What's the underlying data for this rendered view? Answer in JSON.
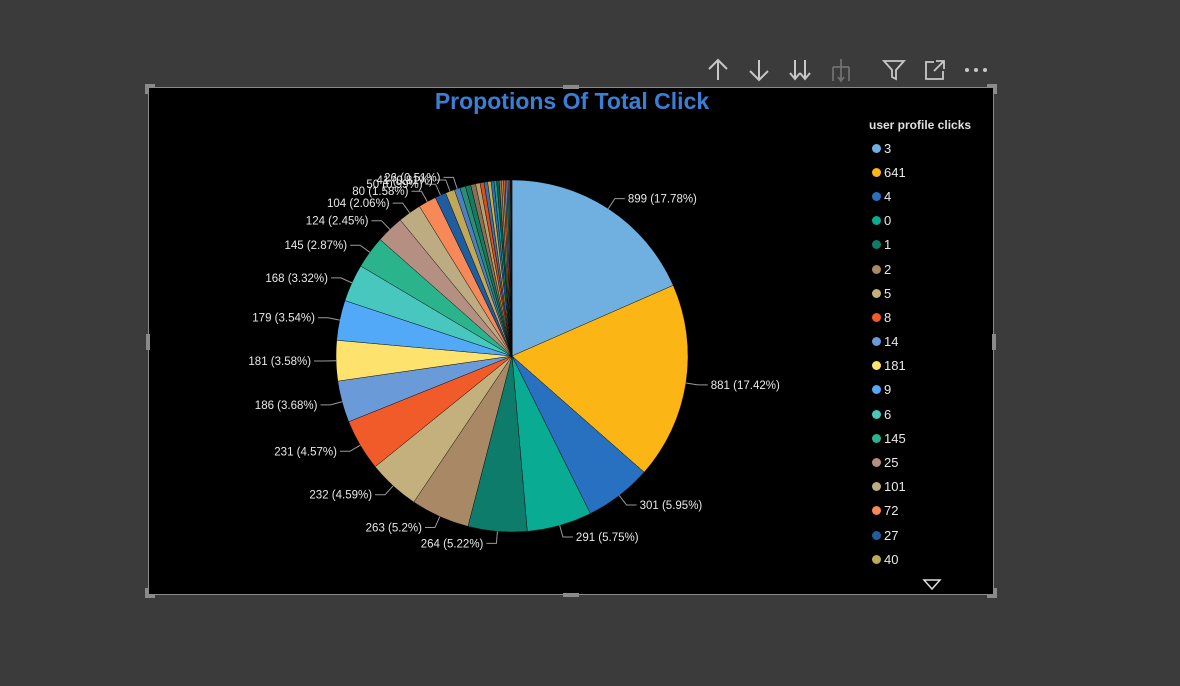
{
  "toolbar": {
    "icons": [
      "arrow-up-icon",
      "arrow-down-icon",
      "double-arrow-down-icon",
      "expand-hierarchy-icon",
      "filter-icon",
      "focus-mode-icon",
      "more-options-icon"
    ]
  },
  "chart_data": {
    "type": "pie",
    "title": "Propotions Of Total Click",
    "legend_title": "user profile clicks",
    "legend_placement": "right",
    "legend_items": [
      {
        "label": "3",
        "color": "#6fb0e0"
      },
      {
        "label": "641",
        "color": "#fbb515"
      },
      {
        "label": "4",
        "color": "#2871c0"
      },
      {
        "label": "0",
        "color": "#0aab93"
      },
      {
        "label": "1",
        "color": "#0e7c6b"
      },
      {
        "label": "2",
        "color": "#a98965"
      },
      {
        "label": "5",
        "color": "#c4b07c"
      },
      {
        "label": "8",
        "color": "#f15a29"
      },
      {
        "label": "14",
        "color": "#6a9ad8"
      },
      {
        "label": "181",
        "color": "#fde26d"
      },
      {
        "label": "9",
        "color": "#52a9f7"
      },
      {
        "label": "6",
        "color": "#47c7bd"
      },
      {
        "label": "145",
        "color": "#2bb38c"
      },
      {
        "label": "25",
        "color": "#b58f82"
      },
      {
        "label": "101",
        "color": "#bdac82"
      },
      {
        "label": "72",
        "color": "#f78857"
      },
      {
        "label": "27",
        "color": "#1f5d9e"
      },
      {
        "label": "40",
        "color": "#c1a858"
      }
    ],
    "slices": [
      {
        "value": 899,
        "label": "899 (17.78%)",
        "color": "#6fb0e0"
      },
      {
        "value": 881,
        "label": "881 (17.42%)",
        "color": "#fbb515"
      },
      {
        "value": 301,
        "label": "301 (5.95%)",
        "color": "#2871c0"
      },
      {
        "value": 291,
        "label": "291 (5.75%)",
        "color": "#0aab93"
      },
      {
        "value": 264,
        "label": "264 (5.22%)",
        "color": "#0e7c6b"
      },
      {
        "value": 263,
        "label": "263 (5.2%)",
        "color": "#a98965"
      },
      {
        "value": 232,
        "label": "232 (4.59%)",
        "color": "#c4b07c"
      },
      {
        "value": 231,
        "label": "231 (4.57%)",
        "color": "#f15a29"
      },
      {
        "value": 186,
        "label": "186 (3.68%)",
        "color": "#6a9ad8"
      },
      {
        "value": 181,
        "label": "181 (3.58%)",
        "color": "#fde26d"
      },
      {
        "value": 179,
        "label": "179 (3.54%)",
        "color": "#52a9f7"
      },
      {
        "value": 168,
        "label": "168 (3.32%)",
        "color": "#47c7bd"
      },
      {
        "value": 145,
        "label": "145 (2.87%)",
        "color": "#2bb38c"
      },
      {
        "value": 124,
        "label": "124 (2.45%)",
        "color": "#b58f82"
      },
      {
        "value": 104,
        "label": "104 (2.06%)",
        "color": "#bdac82"
      },
      {
        "value": 80,
        "label": "80 (1.58%)",
        "color": "#f78857"
      },
      {
        "value": 50,
        "label": "50 (0.99%)",
        "color": "#1f5d9e"
      },
      {
        "value": 41,
        "label": "41 (0.81%)",
        "color": "#c1a858"
      },
      {
        "value": 26,
        "label": "26 (0.51%)",
        "color": "#4c7fc0"
      },
      {
        "value": 25,
        "label": "",
        "color": "#2a8d76"
      },
      {
        "value": 24,
        "label": "",
        "color": "#167a5e"
      },
      {
        "value": 22,
        "label": "",
        "color": "#8a6e58"
      },
      {
        "value": 20,
        "label": "",
        "color": "#b99d6a"
      },
      {
        "value": 18,
        "label": "",
        "color": "#d3501f"
      },
      {
        "value": 16,
        "label": "",
        "color": "#3f6fae"
      },
      {
        "value": 15,
        "label": "",
        "color": "#c8ad3f"
      },
      {
        "value": 13,
        "label": "",
        "color": "#2c6fc7"
      },
      {
        "value": 12,
        "label": "",
        "color": "#189e87"
      },
      {
        "value": 11,
        "label": "",
        "color": "#0d5f50"
      },
      {
        "value": 10,
        "label": "",
        "color": "#9a7356"
      },
      {
        "value": 9,
        "label": "",
        "color": "#a6945f"
      },
      {
        "value": 8,
        "label": "",
        "color": "#d9572c"
      },
      {
        "value": 7,
        "label": "",
        "color": "#5b8fd1"
      },
      {
        "value": 6,
        "label": "",
        "color": "#2b9f80"
      },
      {
        "value": 5,
        "label": "",
        "color": "#a0735f"
      },
      {
        "value": 4,
        "label": "",
        "color": "#d66a3d"
      },
      {
        "value": 3,
        "label": "",
        "color": "#2a5f9e"
      },
      {
        "value": 2,
        "label": "",
        "color": "#b59b53"
      },
      {
        "value": 2,
        "label": "",
        "color": "#5b7fb0"
      },
      {
        "value": 1,
        "label": "",
        "color": "#7fa0c0"
      }
    ]
  }
}
